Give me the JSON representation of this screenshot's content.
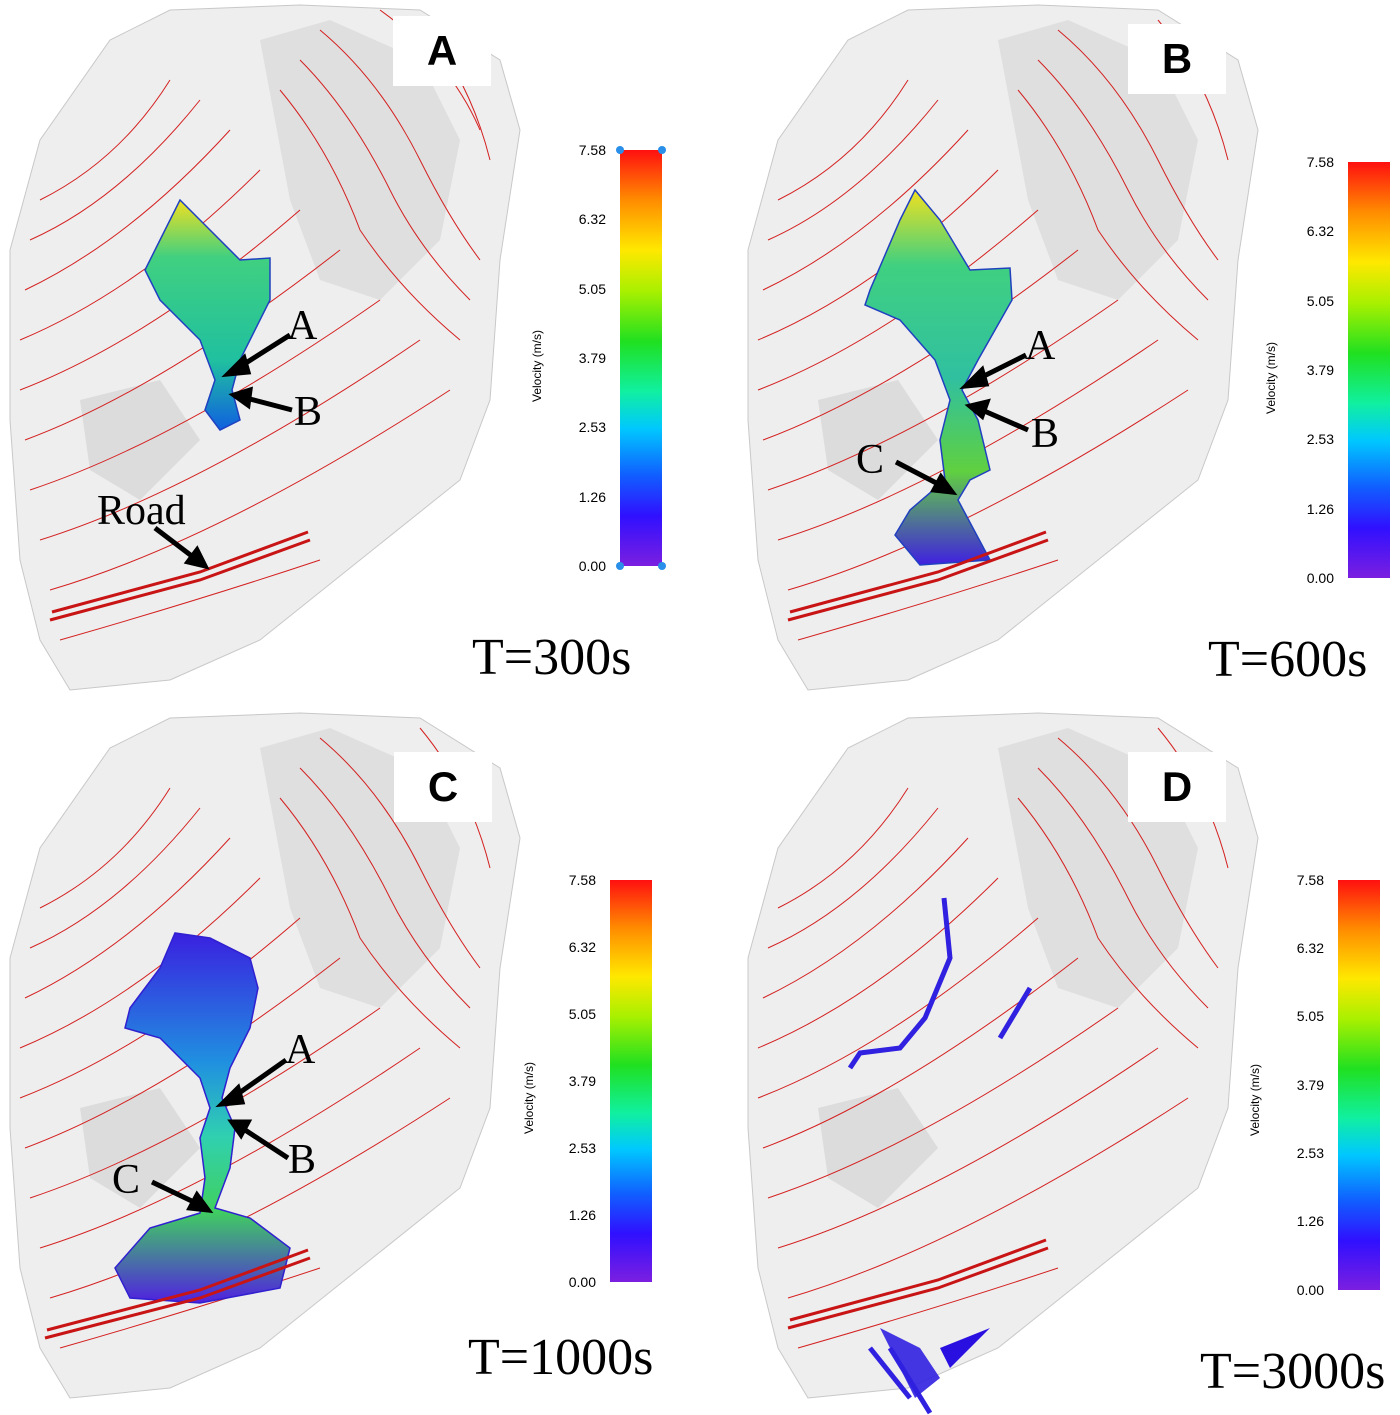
{
  "panels": [
    {
      "letter": "A",
      "time": "T=300s",
      "annotations": [
        "A",
        "B",
        "Road"
      ]
    },
    {
      "letter": "B",
      "time": "T=600s",
      "annotations": [
        "A",
        "B",
        "C"
      ]
    },
    {
      "letter": "C",
      "time": "T=1000s",
      "annotations": [
        "A",
        "B",
        "C"
      ]
    },
    {
      "letter": "D",
      "time": "T=3000s",
      "annotations": []
    }
  ],
  "colorbar": {
    "title": "Velocity (m/s)",
    "ticks": [
      "7.58",
      "6.32",
      "5.05",
      "3.79",
      "2.53",
      "1.26",
      "0.00"
    ],
    "min": 0.0,
    "max": 7.58
  },
  "colors": {
    "contour": "#d42020",
    "terrain": "#e6e6e6",
    "road": "#c81414"
  }
}
